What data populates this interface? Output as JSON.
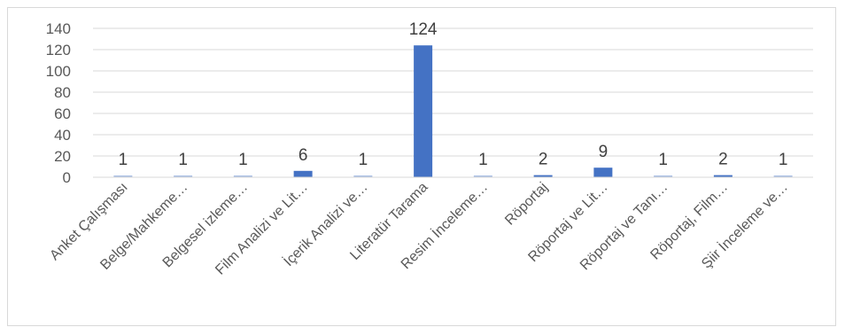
{
  "chart_data": {
    "type": "bar",
    "categories": [
      "Anket Çalışması",
      "Belge/Mahkeme…",
      "Belgesel izleme…",
      "Film Analizi ve Lit…",
      "İçerik Analizi ve…",
      "Literatür Tarama",
      "Resim İnceleme…",
      "Röportaj",
      "Röportaj ve Lit…",
      "Röportaj ve Tanı…",
      "Röportaj, Film…",
      "Şiir İnceleme ve…"
    ],
    "values": [
      1,
      1,
      1,
      6,
      1,
      124,
      1,
      2,
      9,
      1,
      2,
      1
    ],
    "ylim": [
      0,
      140
    ],
    "yticks": [
      "0",
      "20",
      "40",
      "60",
      "80",
      "100",
      "120",
      "140"
    ],
    "grid": true,
    "legend": "none",
    "bar_color": "#4472c4",
    "grid_color": "#d9d9d9"
  }
}
